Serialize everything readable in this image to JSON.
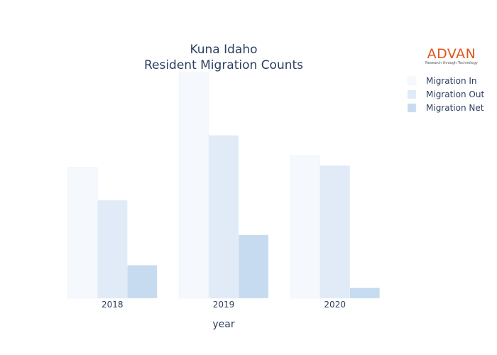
{
  "chart_data": {
    "type": "bar",
    "title": [
      "Kuna Idaho",
      "Resident Migration Counts"
    ],
    "xlabel": "year",
    "ylabel": "",
    "categories": [
      "2018",
      "2019",
      "2020"
    ],
    "series": [
      {
        "name": "Migration In",
        "values": [
          1210,
          2090,
          1320
        ],
        "color": "#f5f9fe"
      },
      {
        "name": "Migration Out",
        "values": [
          905,
          1505,
          1225
        ],
        "color": "#e0ebf7"
      },
      {
        "name": "Migration Net",
        "values": [
          305,
          585,
          95
        ],
        "color": "#c6dbef"
      }
    ],
    "ylim": [
      0,
      2100
    ],
    "grid": false,
    "legend_position": "top-right"
  },
  "logo": {
    "name": "ADVAN",
    "tagline": "Research through Technology"
  }
}
